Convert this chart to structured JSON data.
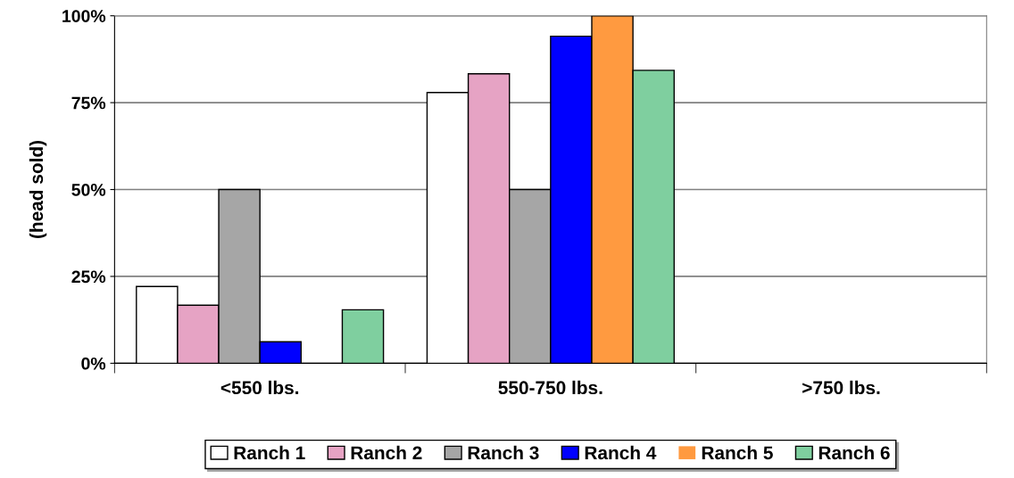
{
  "chart_data": {
    "type": "bar",
    "ylabel": "(head sold)",
    "categories": [
      "<550 lbs.",
      "550-750 lbs.",
      ">750 lbs."
    ],
    "series": [
      {
        "name": "Ranch 1",
        "color": "#ffffff",
        "values": [
          22.1,
          77.9,
          0
        ]
      },
      {
        "name": "Ranch 2",
        "color": "#e6a3c4",
        "values": [
          16.7,
          83.3,
          0
        ]
      },
      {
        "name": "Ranch 3",
        "color": "#a6a6a6",
        "values": [
          50,
          50,
          0
        ]
      },
      {
        "name": "Ranch 4",
        "color": "#0000ff",
        "values": [
          6.2,
          94.1,
          0
        ]
      },
      {
        "name": "Ranch 5",
        "color": "#ff9a40",
        "values": [
          0,
          100,
          0
        ]
      },
      {
        "name": "Ranch 6",
        "color": "#7fcf9f",
        "values": [
          15.4,
          84.3,
          0
        ]
      }
    ],
    "ylim": [
      0,
      100
    ],
    "yticks": [
      {
        "value": 0,
        "label": "0%"
      },
      {
        "value": 25,
        "label": "25%"
      },
      {
        "value": 50,
        "label": "50%"
      },
      {
        "value": 75,
        "label": "75%"
      },
      {
        "value": 100,
        "label": "100%"
      }
    ],
    "grid": "y",
    "legend": "bottom"
  }
}
